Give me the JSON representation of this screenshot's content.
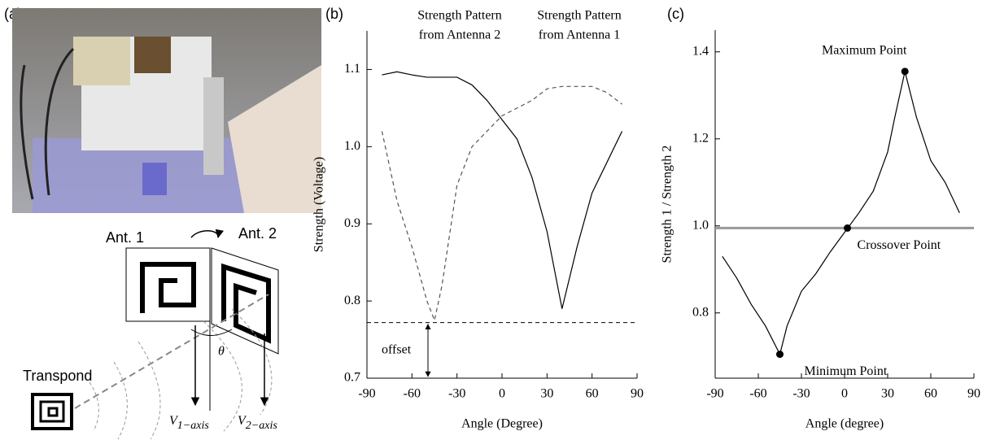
{
  "photo_panel": {
    "label": "(a)"
  },
  "diagram": {
    "ant1": "Ant. 1",
    "ant2": "Ant. 2",
    "transponder": "Transpond",
    "angle": "θ",
    "v1": {
      "symbol": "V",
      "subscript": "1−axis"
    },
    "v2": {
      "symbol": "V",
      "subscript": "2−axis"
    }
  },
  "chart_data": [
    {
      "type": "line",
      "panel": "(b)",
      "x_label": "Angle (Degree)",
      "y_label": "Strength (Voltage)",
      "xlim": [
        -90,
        90
      ],
      "xticks": [
        -90,
        -60,
        -30,
        0,
        30,
        60,
        90
      ],
      "ylim": [
        0.7,
        1.15
      ],
      "yticks": [
        0.7,
        0.8,
        0.9,
        {
          "value": 1,
          "label": "1.0"
        },
        1.1
      ],
      "series": [
        {
          "color": "#000000",
          "line_style": "solid",
          "x": [
            -80,
            -70,
            -60,
            -50,
            -40,
            -30,
            -20,
            -10,
            0,
            10,
            20,
            30,
            40,
            50,
            60,
            70,
            80
          ],
          "values": [
            1.093,
            1.097,
            1.093,
            1.09,
            1.09,
            1.09,
            1.08,
            1.06,
            1.035,
            1.01,
            0.96,
            0.89,
            0.79,
            0.87,
            0.94,
            0.98,
            1.02
          ]
        },
        {
          "color": "#555555",
          "line_style": "dashed",
          "x": [
            -80,
            -70,
            -60,
            -50,
            -45,
            -40,
            -30,
            -20,
            -10,
            0,
            10,
            20,
            30,
            40,
            50,
            60,
            70,
            80
          ],
          "values": [
            1.02,
            0.93,
            0.87,
            0.8,
            0.775,
            0.82,
            0.95,
            1.0,
            1.02,
            1.04,
            1.05,
            1.06,
            1.075,
            1.078,
            1.078,
            1.078,
            1.07,
            1.055
          ]
        }
      ],
      "hline": {
        "value": 0.772,
        "line_style": "dashed",
        "color": "#000000"
      },
      "offset_label": "offset",
      "annotations": [
        [
          "Strength Pattern",
          "from Antenna 2"
        ],
        [
          "Strength Pattern",
          "from Antenna 1"
        ]
      ]
    },
    {
      "type": "line",
      "panel": "(c)",
      "x_label": "Angle (degree)",
      "y_label": "Strength 1 / Strength 2",
      "xlim": [
        -90,
        90
      ],
      "xticks": [
        -90,
        -60,
        -30,
        0,
        30,
        60,
        90
      ],
      "ylim": [
        0.65,
        1.45
      ],
      "yticks": [
        0.8,
        {
          "value": 1,
          "label": "1.0"
        },
        1.2,
        1.4
      ],
      "series": [
        {
          "color": "#000000",
          "line_style": "solid",
          "x": [
            -85,
            -75,
            -65,
            -55,
            -45,
            -40,
            -30,
            -20,
            -10,
            0,
            10,
            20,
            30,
            35,
            42,
            50,
            60,
            70,
            80
          ],
          "values": [
            0.93,
            0.88,
            0.82,
            0.77,
            0.705,
            0.77,
            0.85,
            0.89,
            0.94,
            0.985,
            1.03,
            1.08,
            1.17,
            1.25,
            1.355,
            1.25,
            1.15,
            1.1,
            1.03
          ]
        }
      ],
      "hline": {
        "value": 0.995,
        "line_style": "solid",
        "color": "#999999"
      },
      "points": [
        {
          "label": "Minimum Point",
          "x": -45,
          "y": 0.705
        },
        {
          "label": "Crossover Point",
          "x": 2,
          "y": 0.995
        },
        {
          "label": "Maximum Point",
          "x": 42,
          "y": 1.355
        }
      ]
    }
  ]
}
